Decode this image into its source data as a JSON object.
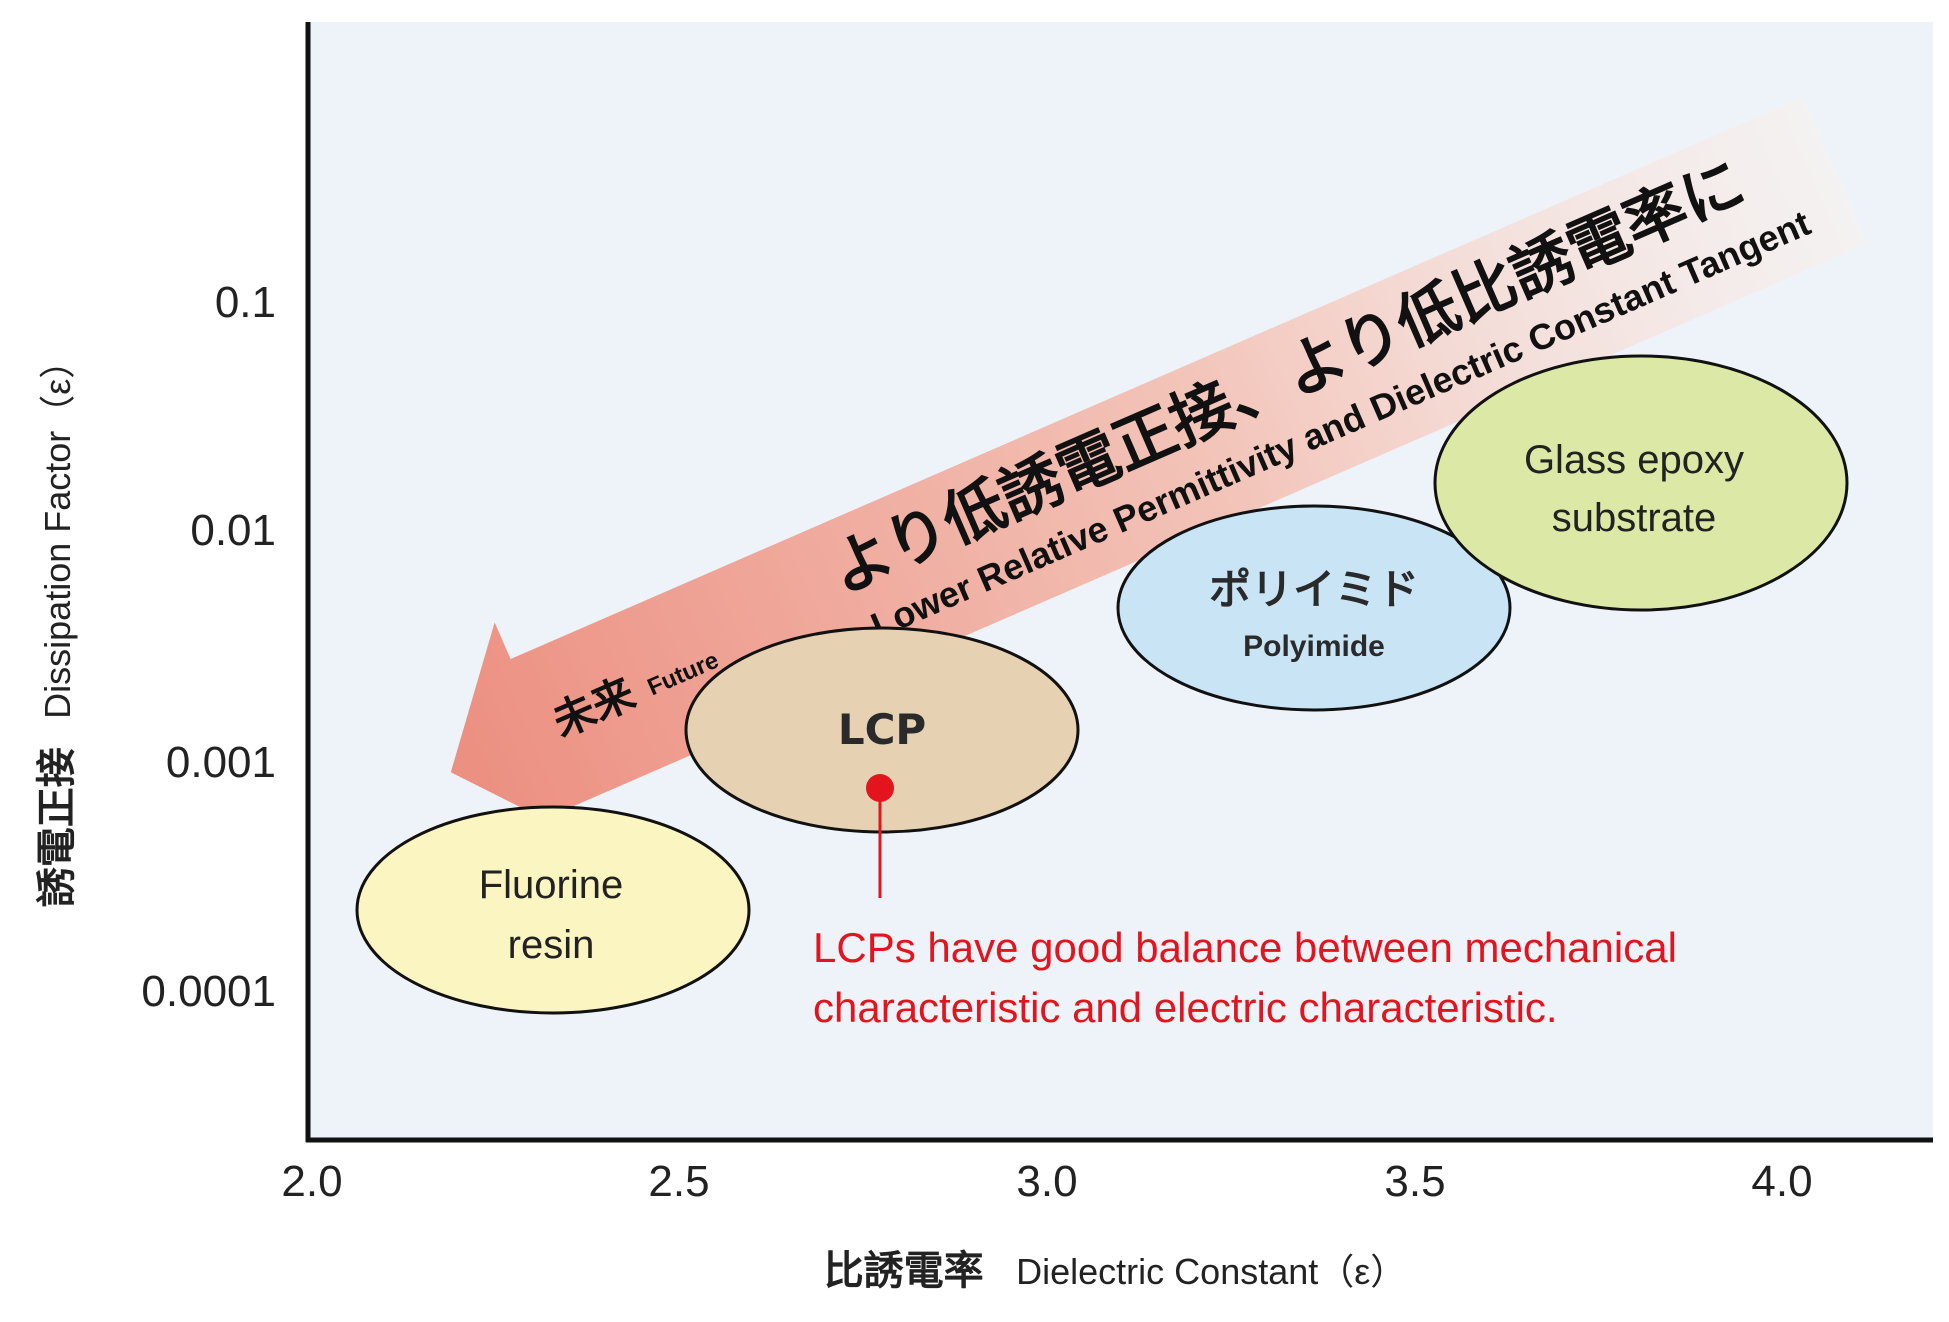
{
  "chart_data": {
    "type": "scatter",
    "title": "",
    "xlabel": {
      "jp": "比誘電率",
      "en": "Dielectric Constant（ε）"
    },
    "ylabel": {
      "jp": "誘電正接",
      "en": "Dissipation Factor（ε）"
    },
    "xlim": [
      2.0,
      4.2
    ],
    "x_ticks": [
      "2.0",
      "2.5",
      "3.0",
      "3.5",
      "4.0"
    ],
    "y_ticks": [
      "0.1",
      "0.01",
      "0.001",
      "0.0001"
    ],
    "y_scale": "log",
    "regions": [
      {
        "name": "Fluorine resin",
        "label_lines": [
          "Fluorine",
          "resin"
        ],
        "x_center": 2.32,
        "x_range": [
          2.05,
          2.6
        ],
        "y_center": 0.0003,
        "color": "#fbf5c2"
      },
      {
        "name": "LCP",
        "label_lines": [
          "LCP"
        ],
        "x_center": 2.77,
        "x_range": [
          2.5,
          3.03
        ],
        "y_center": 0.0015,
        "color": "#e6d1b3"
      },
      {
        "name": "ポリイミド",
        "label_lines": [
          "ポリイミド",
          "Polyimide"
        ],
        "x_center": 3.37,
        "x_range": [
          3.1,
          3.63
        ],
        "y_center": 0.005,
        "color": "#c8e4f5"
      },
      {
        "name": "Glass epoxy substrate",
        "label_lines": [
          "Glass epoxy",
          "substrate"
        ],
        "x_center": 3.78,
        "x_range": [
          3.47,
          4.03
        ],
        "y_center": 0.02,
        "color": "#dce8a6"
      }
    ],
    "highlight_point": {
      "name": "LCP",
      "x": 2.78,
      "y": 0.001,
      "color": "#e3141e"
    },
    "annotation": [
      "LCPs have good balance between mechanical",
      "characteristic and electric characteristic."
    ],
    "trend_arrow": {
      "text_jp": "より低誘電正接、より低比誘電率に",
      "text_en": "Lower Relative Permittivity and Dielectric Constant Tangent",
      "tip_label_jp": "未来",
      "tip_label_en": "Future"
    },
    "grid": false,
    "legend": "none",
    "colors": {
      "plot_background": "#edf3f8",
      "axis": "#111111",
      "annotation": "#e3141e"
    }
  }
}
